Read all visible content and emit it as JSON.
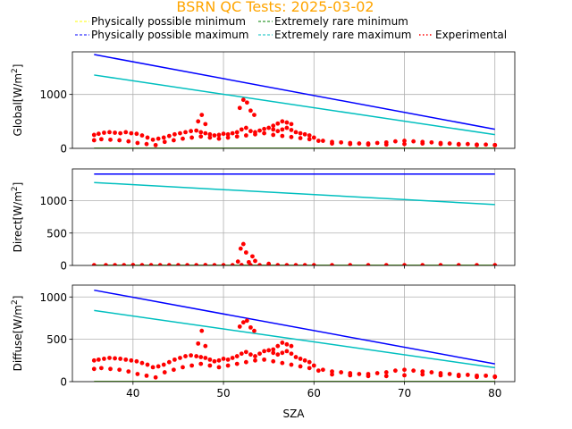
{
  "title": "BSRN QC Tests: 2025-03-02",
  "title_color": "#ffa500",
  "legend": [
    {
      "label": "Physically possible minimum",
      "color": "#ffff00",
      "style": "dashed"
    },
    {
      "label": "Extremely rare minimum",
      "color": "#008000",
      "style": "dashed"
    },
    {
      "label": "Physically possible maximum",
      "color": "#0000ff",
      "style": "dashed"
    },
    {
      "label": "Extremely rare maximum",
      "color": "#00bfbf",
      "style": "dashed"
    },
    {
      "label": "Experimental",
      "color": "#ff0000",
      "style": "dotted"
    }
  ],
  "chart_data": [
    {
      "type": "line",
      "ylabel": "Global[W/m",
      "ylabel_sup": "2",
      "ylabel_close": "]",
      "xlim": [
        33.3,
        82.2
      ],
      "ylim": [
        0,
        1790
      ],
      "xticks": [
        40,
        50,
        60,
        70,
        80
      ],
      "yticks": [
        0,
        1000
      ],
      "grid": true,
      "series": [
        {
          "role": "phys_min",
          "color": "#ffff00",
          "x": [
            35.7,
            80
          ],
          "y": [
            0,
            0
          ]
        },
        {
          "role": "rare_min",
          "color": "#008000",
          "x": [
            35.7,
            80
          ],
          "y": [
            0,
            0
          ]
        },
        {
          "role": "phys_max",
          "color": "#0000ff",
          "x": [
            35.7,
            80
          ],
          "y": [
            1740,
            355
          ]
        },
        {
          "role": "rare_max",
          "color": "#00bfbf",
          "x": [
            35.7,
            80
          ],
          "y": [
            1360,
            255
          ]
        },
        {
          "role": "experimental",
          "color": "#ff0000",
          "mode": "points",
          "x": [
            35.7,
            36.2,
            36.8,
            37.4,
            38.0,
            38.6,
            39.2,
            39.8,
            40.4,
            41.0,
            41.6,
            42.2,
            42.8,
            43.4,
            44.0,
            44.6,
            45.2,
            45.8,
            46.4,
            47.0,
            47.5,
            48.0,
            48.5,
            49.0,
            49.5,
            50.0,
            50.5,
            51.0,
            51.5,
            52.0,
            52.5,
            53.0,
            53.5,
            54.0,
            54.5,
            55.0,
            55.5,
            56.0,
            56.5,
            57.0,
            57.5,
            58.0,
            58.5,
            59.0,
            59.5,
            60.0,
            61,
            62,
            63,
            64,
            65,
            66,
            67,
            68,
            69,
            70,
            71,
            72,
            73,
            74,
            75,
            76,
            77,
            78,
            79,
            80,
            35.7,
            36.5,
            37.5,
            38.5,
            39.5,
            40.5,
            41.5,
            42.5,
            43.5,
            44.5,
            45.5,
            46.5,
            47.5,
            48.5,
            49.5,
            50.5,
            51.5,
            52.5,
            53.5,
            54.5,
            55.5,
            56.5,
            57.5,
            58.5,
            59.5,
            60.5,
            62,
            64,
            66,
            68,
            70,
            72,
            74,
            76,
            78,
            80,
            47.2,
            47.6,
            48.0,
            51.8,
            52.2,
            52.6,
            53.0,
            53.4,
            55.5,
            56.0,
            56.5,
            57.0,
            57.5
          ],
          "y": [
            250,
            270,
            290,
            300,
            290,
            280,
            300,
            280,
            270,
            240,
            200,
            160,
            180,
            200,
            230,
            260,
            280,
            300,
            320,
            330,
            300,
            280,
            260,
            240,
            250,
            270,
            260,
            280,
            300,
            350,
            380,
            320,
            300,
            330,
            360,
            380,
            350,
            320,
            350,
            380,
            340,
            300,
            280,
            260,
            240,
            200,
            140,
            120,
            110,
            100,
            90,
            90,
            100,
            110,
            130,
            140,
            130,
            120,
            110,
            100,
            90,
            80,
            80,
            70,
            70,
            60,
            150,
            170,
            160,
            150,
            130,
            100,
            80,
            60,
            120,
            150,
            180,
            200,
            220,
            200,
            180,
            200,
            220,
            240,
            260,
            280,
            250,
            230,
            210,
            190,
            170,
            140,
            90,
            80,
            70,
            70,
            80,
            90,
            80,
            70,
            60,
            60,
            500,
            620,
            450,
            750,
            900,
            850,
            700,
            620,
            420,
            460,
            500,
            480,
            450
          ]
        }
      ]
    },
    {
      "type": "line",
      "ylabel": "Direct[W/m",
      "ylabel_sup": "2",
      "ylabel_close": "]",
      "xlim": [
        33.3,
        82.2
      ],
      "ylim": [
        0,
        1490
      ],
      "xticks": [
        40,
        50,
        60,
        70,
        80
      ],
      "yticks": [
        0,
        500,
        1000
      ],
      "grid": true,
      "series": [
        {
          "role": "phys_min",
          "color": "#ffff00",
          "x": [
            35.7,
            80
          ],
          "y": [
            0,
            0
          ]
        },
        {
          "role": "rare_min",
          "color": "#008000",
          "x": [
            35.7,
            80
          ],
          "y": [
            0,
            0
          ]
        },
        {
          "role": "phys_max",
          "color": "#0000ff",
          "x": [
            35.7,
            80
          ],
          "y": [
            1410,
            1410
          ]
        },
        {
          "role": "rare_max",
          "color": "#00bfbf",
          "x": [
            35.7,
            80
          ],
          "y": [
            1280,
            940
          ]
        },
        {
          "role": "experimental",
          "color": "#ff0000",
          "mode": "points",
          "x": [
            35.7,
            37,
            38,
            39,
            40,
            41,
            42,
            43,
            44,
            45,
            46,
            47,
            48,
            49,
            50,
            51,
            52,
            53,
            54,
            55,
            56,
            57,
            58,
            59,
            60,
            62,
            64,
            66,
            68,
            70,
            72,
            74,
            76,
            78,
            80,
            51.6,
            51.9,
            52.2,
            52.5,
            52.8,
            53.2,
            53.5,
            55.0
          ],
          "y": [
            5,
            4,
            5,
            4,
            6,
            5,
            4,
            5,
            4,
            5,
            4,
            5,
            6,
            5,
            4,
            5,
            6,
            5,
            4,
            6,
            5,
            4,
            5,
            4,
            5,
            4,
            5,
            4,
            5,
            4,
            5,
            4,
            5,
            4,
            5,
            60,
            260,
            330,
            200,
            50,
            140,
            70,
            25
          ]
        }
      ]
    },
    {
      "type": "line",
      "ylabel": "Diffuse[W/m",
      "ylabel_sup": "2",
      "ylabel_close": "]",
      "xlabel": "SZA",
      "xlim": [
        33.3,
        82.2
      ],
      "ylim": [
        0,
        1140
      ],
      "xticks": [
        40,
        50,
        60,
        70,
        80
      ],
      "yticks": [
        0,
        500,
        1000
      ],
      "grid": true,
      "series": [
        {
          "role": "phys_min",
          "color": "#ffff00",
          "x": [
            35.7,
            80
          ],
          "y": [
            0,
            0
          ]
        },
        {
          "role": "rare_min",
          "color": "#008000",
          "x": [
            35.7,
            80
          ],
          "y": [
            0,
            0
          ]
        },
        {
          "role": "phys_max",
          "color": "#0000ff",
          "x": [
            35.7,
            80
          ],
          "y": [
            1080,
            210
          ]
        },
        {
          "role": "rare_max",
          "color": "#00bfbf",
          "x": [
            35.7,
            80
          ],
          "y": [
            840,
            165
          ]
        },
        {
          "role": "experimental",
          "color": "#ff0000",
          "mode": "points",
          "x": [
            35.7,
            36.2,
            36.8,
            37.4,
            38.0,
            38.6,
            39.2,
            39.8,
            40.4,
            41.0,
            41.6,
            42.2,
            42.8,
            43.4,
            44.0,
            44.6,
            45.2,
            45.8,
            46.4,
            47.0,
            47.5,
            48.0,
            48.5,
            49.0,
            49.5,
            50.0,
            50.5,
            51.0,
            51.5,
            52.0,
            52.5,
            53.0,
            53.5,
            54.0,
            54.5,
            55.0,
            55.5,
            56.0,
            56.5,
            57.0,
            57.5,
            58.0,
            58.5,
            59.0,
            59.5,
            60.0,
            61,
            62,
            63,
            64,
            65,
            66,
            67,
            68,
            69,
            70,
            71,
            72,
            73,
            74,
            75,
            76,
            77,
            78,
            79,
            80,
            35.7,
            36.5,
            37.5,
            38.5,
            39.5,
            40.5,
            41.5,
            42.5,
            43.5,
            44.5,
            45.5,
            46.5,
            47.5,
            48.5,
            49.5,
            50.5,
            51.5,
            52.5,
            53.5,
            54.5,
            55.5,
            56.5,
            57.5,
            58.5,
            59.5,
            60.5,
            62,
            64,
            66,
            68,
            70,
            72,
            74,
            76,
            78,
            80,
            47.2,
            47.6,
            48.0,
            51.8,
            52.2,
            52.6,
            53.0,
            53.4,
            55.5,
            56.0,
            56.5,
            57.0,
            57.5
          ],
          "y": [
            250,
            260,
            270,
            280,
            275,
            270,
            260,
            250,
            240,
            220,
            200,
            170,
            180,
            200,
            230,
            260,
            280,
            300,
            310,
            300,
            290,
            280,
            260,
            240,
            250,
            270,
            260,
            280,
            300,
            330,
            350,
            320,
            300,
            330,
            360,
            370,
            340,
            320,
            340,
            360,
            330,
            290,
            270,
            250,
            230,
            190,
            140,
            120,
            110,
            100,
            90,
            90,
            100,
            110,
            130,
            140,
            130,
            120,
            110,
            100,
            90,
            80,
            80,
            70,
            70,
            60,
            150,
            160,
            150,
            140,
            120,
            90,
            70,
            50,
            110,
            140,
            170,
            190,
            210,
            190,
            170,
            190,
            210,
            230,
            250,
            260,
            240,
            220,
            200,
            180,
            160,
            130,
            85,
            75,
            65,
            65,
            75,
            85,
            75,
            65,
            55,
            55,
            450,
            600,
            420,
            650,
            700,
            720,
            640,
            600,
            380,
            420,
            460,
            440,
            420
          ]
        }
      ]
    }
  ]
}
